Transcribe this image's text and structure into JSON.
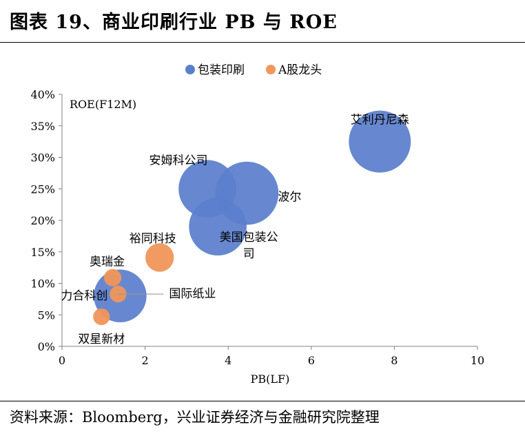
{
  "figure_title": "图表 19、商业印刷行业 PB 与 ROE",
  "source_note": "资料来源：Bloomberg，兴业证券经济与金融研究院整理",
  "colors": {
    "packaging": "#5B7FCC",
    "a_share": "#F0965A",
    "axis": "#808080",
    "leader": "#999999"
  },
  "chart_data": {
    "type": "scatter",
    "subtype": "bubble",
    "title": "",
    "xlabel": "PB(LF)",
    "ylabel": "ROE(F12M)",
    "xlim": [
      0,
      10
    ],
    "ylim": [
      0,
      0.4
    ],
    "x_ticks": [
      0,
      2,
      4,
      6,
      8,
      10
    ],
    "x_tick_labels": [
      "0",
      "2",
      "4",
      "6",
      "8",
      "10"
    ],
    "y_ticks": [
      0,
      0.05,
      0.1,
      0.15,
      0.2,
      0.25,
      0.3,
      0.35,
      0.4
    ],
    "y_tick_labels": [
      "0%",
      "5%",
      "10%",
      "15%",
      "20%",
      "25%",
      "30%",
      "35%",
      "40%"
    ],
    "grid": false,
    "legend_position": "top-center",
    "series": [
      {
        "name": "包装印刷",
        "color": "#5B7FCC",
        "points": [
          {
            "label": "艾利丹尼森",
            "x": 7.65,
            "y": 0.325,
            "size": 1.0
          },
          {
            "label": "安姆科公司",
            "x": 3.5,
            "y": 0.25,
            "size": 0.93
          },
          {
            "label": "波尔",
            "x": 4.45,
            "y": 0.243,
            "size": 1.02
          },
          {
            "label": "美国包装公司",
            "x": 3.75,
            "y": 0.19,
            "size": 0.93
          },
          {
            "label": "力合科创",
            "x": 1.4,
            "y": 0.08,
            "size": 0.85
          }
        ]
      },
      {
        "name": "A股龙头",
        "color": "#F0965A",
        "points": [
          {
            "label": "裕同科技",
            "x": 2.35,
            "y": 0.141,
            "size": 0.46
          },
          {
            "label": "奥瑞金",
            "x": 1.22,
            "y": 0.109,
            "size": 0.28
          },
          {
            "label": "国际纸业",
            "x": 1.35,
            "y": 0.083,
            "size": 0.27
          },
          {
            "label": "双星新材",
            "x": 0.95,
            "y": 0.047,
            "size": 0.27
          }
        ]
      }
    ]
  }
}
